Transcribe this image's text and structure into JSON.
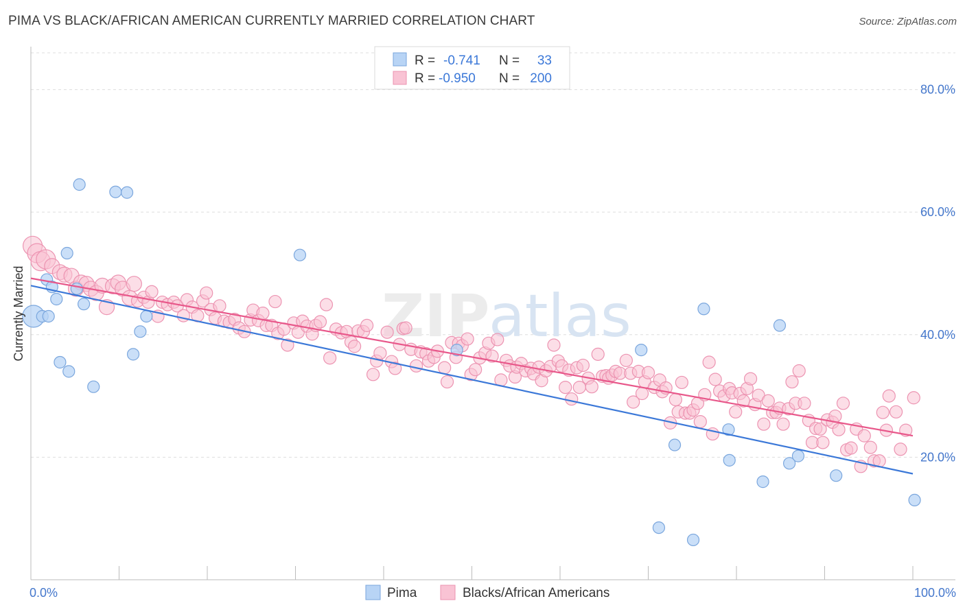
{
  "header": {
    "title": "PIMA VS BLACK/AFRICAN AMERICAN CURRENTLY MARRIED CORRELATION CHART",
    "source": "Source: ZipAtlas.com"
  },
  "legend": {
    "rows": [
      {
        "r_label": "R =",
        "r_value": "-0.741",
        "n_label": "N =",
        "n_value": "33"
      },
      {
        "r_label": "R =",
        "r_value": "-0.950",
        "n_label": "N =",
        "n_value": "200"
      }
    ],
    "bottom": [
      "Pima",
      "Blacks/African Americans"
    ]
  },
  "watermark": {
    "zip": "ZIP",
    "atlas": "atlas"
  },
  "colors": {
    "pima_fill": "#b8d4f5",
    "pima_stroke": "#7aa6dd",
    "pima_line": "#3b78d8",
    "black_fill": "#f9c3d4",
    "black_stroke": "#ec93b1",
    "black_line": "#e8578a",
    "tick_text": "#4477cc",
    "grid": "#dddddd"
  },
  "chart_data": {
    "type": "scatter",
    "ylabel": "Currently Married",
    "xlabel": "",
    "xlim": [
      0,
      100
    ],
    "ylim": [
      0,
      86
    ],
    "x_tick_labels": [
      "0.0%",
      "100.0%"
    ],
    "y_ticks": [
      20,
      40,
      60,
      80
    ],
    "y_tick_labels": [
      "20.0%",
      "40.0%",
      "60.0%",
      "80.0%"
    ],
    "grid": true,
    "series": [
      {
        "name": "Pima",
        "trend": {
          "x": [
            0,
            100
          ],
          "y": [
            48.0,
            17.3
          ]
        },
        "points": [
          [
            0.3,
            43.0
          ],
          [
            1.3,
            43.0
          ],
          [
            2.0,
            43.0
          ],
          [
            1.8,
            49.0
          ],
          [
            2.4,
            47.8
          ],
          [
            2.9,
            45.8
          ],
          [
            3.3,
            35.5
          ],
          [
            4.1,
            53.3
          ],
          [
            4.3,
            34.0
          ],
          [
            5.2,
            47.5
          ],
          [
            5.5,
            64.5
          ],
          [
            6.0,
            45.0
          ],
          [
            7.1,
            31.5
          ],
          [
            9.6,
            63.3
          ],
          [
            10.9,
            63.2
          ],
          [
            11.6,
            36.8
          ],
          [
            12.4,
            40.5
          ],
          [
            13.1,
            43.0
          ],
          [
            30.5,
            53.0
          ],
          [
            48.3,
            37.5
          ],
          [
            69.2,
            37.5
          ],
          [
            71.2,
            8.5
          ],
          [
            73.0,
            22.0
          ],
          [
            75.1,
            6.5
          ],
          [
            76.3,
            44.2
          ],
          [
            79.1,
            24.5
          ],
          [
            79.2,
            19.5
          ],
          [
            83.0,
            16.0
          ],
          [
            84.9,
            41.5
          ],
          [
            86.0,
            19.0
          ],
          [
            87.0,
            20.2
          ],
          [
            91.3,
            17.0
          ],
          [
            100.2,
            13.0
          ]
        ]
      },
      {
        "name": "Blacks/African Americans",
        "trend": {
          "x": [
            0,
            100
          ],
          "y": [
            49.2,
            23.5
          ]
        },
        "points": [
          [
            0.2,
            54.5
          ],
          [
            0.7,
            53.3
          ],
          [
            1.1,
            52.0
          ],
          [
            1.7,
            52.3
          ],
          [
            2.4,
            51.2
          ],
          [
            3.3,
            50.2
          ],
          [
            3.8,
            49.8
          ],
          [
            4.6,
            49.6
          ],
          [
            5.1,
            47.5
          ],
          [
            5.7,
            48.5
          ],
          [
            6.3,
            48.3
          ],
          [
            6.8,
            47.5
          ],
          [
            7.4,
            46.8
          ],
          [
            8.1,
            48.0
          ],
          [
            8.6,
            44.5
          ],
          [
            9.3,
            47.9
          ],
          [
            9.9,
            48.5
          ],
          [
            10.4,
            47.5
          ],
          [
            11.2,
            46.0
          ],
          [
            11.7,
            48.3
          ],
          [
            12.1,
            45.5
          ],
          [
            12.8,
            46.1
          ],
          [
            13.3,
            45.3
          ],
          [
            13.7,
            47.0
          ],
          [
            14.4,
            43.0
          ],
          [
            14.9,
            45.3
          ],
          [
            15.5,
            44.9
          ],
          [
            16.2,
            45.3
          ],
          [
            16.6,
            44.7
          ],
          [
            17.3,
            43.1
          ],
          [
            17.7,
            45.7
          ],
          [
            18.3,
            44.5
          ],
          [
            18.9,
            43.1
          ],
          [
            19.5,
            45.5
          ],
          [
            19.9,
            46.8
          ],
          [
            20.4,
            44.1
          ],
          [
            20.9,
            42.7
          ],
          [
            21.4,
            44.7
          ],
          [
            21.9,
            42.2
          ],
          [
            22.5,
            42.0
          ],
          [
            23.1,
            42.5
          ],
          [
            23.6,
            41.1
          ],
          [
            24.2,
            40.5
          ],
          [
            24.9,
            42.4
          ],
          [
            25.2,
            44.0
          ],
          [
            25.8,
            42.3
          ],
          [
            26.3,
            43.5
          ],
          [
            26.7,
            41.5
          ],
          [
            27.3,
            41.5
          ],
          [
            27.7,
            45.4
          ],
          [
            28.0,
            40.2
          ],
          [
            28.7,
            40.9
          ],
          [
            29.1,
            38.3
          ],
          [
            29.8,
            41.9
          ],
          [
            30.3,
            40.4
          ],
          [
            30.8,
            42.2
          ],
          [
            31.3,
            41.4
          ],
          [
            31.9,
            40.1
          ],
          [
            32.3,
            41.5
          ],
          [
            32.8,
            42.1
          ],
          [
            33.5,
            44.9
          ],
          [
            33.9,
            36.2
          ],
          [
            34.6,
            40.9
          ],
          [
            35.2,
            40.3
          ],
          [
            35.8,
            40.5
          ],
          [
            36.3,
            38.8
          ],
          [
            36.7,
            38.1
          ],
          [
            37.1,
            40.6
          ],
          [
            37.7,
            40.5
          ],
          [
            38.1,
            41.5
          ],
          [
            38.8,
            33.5
          ],
          [
            39.2,
            35.7
          ],
          [
            39.6,
            37.0
          ],
          [
            40.4,
            40.4
          ],
          [
            40.9,
            35.6
          ],
          [
            41.3,
            34.5
          ],
          [
            41.8,
            38.4
          ],
          [
            42.2,
            41.0
          ],
          [
            42.5,
            41.1
          ],
          [
            43.1,
            37.6
          ],
          [
            43.7,
            34.9
          ],
          [
            44.2,
            37.2
          ],
          [
            44.8,
            36.9
          ],
          [
            45.1,
            35.7
          ],
          [
            45.7,
            36.3
          ],
          [
            46.1,
            37.3
          ],
          [
            46.9,
            34.6
          ],
          [
            47.2,
            32.3
          ],
          [
            47.7,
            38.7
          ],
          [
            48.2,
            36.3
          ],
          [
            48.5,
            38.6
          ],
          [
            48.9,
            38.2
          ],
          [
            49.5,
            39.3
          ],
          [
            49.9,
            33.5
          ],
          [
            50.4,
            34.3
          ],
          [
            50.9,
            36.2
          ],
          [
            51.5,
            37.0
          ],
          [
            51.9,
            38.6
          ],
          [
            52.3,
            36.5
          ],
          [
            52.9,
            39.2
          ],
          [
            53.3,
            32.6
          ],
          [
            53.9,
            35.8
          ],
          [
            54.3,
            34.9
          ],
          [
            54.9,
            33.1
          ],
          [
            55.1,
            34.7
          ],
          [
            55.6,
            35.3
          ],
          [
            56.1,
            34.1
          ],
          [
            56.7,
            34.5
          ],
          [
            57.0,
            33.6
          ],
          [
            57.6,
            34.7
          ],
          [
            57.9,
            32.5
          ],
          [
            58.4,
            34.1
          ],
          [
            58.9,
            34.8
          ],
          [
            59.3,
            38.3
          ],
          [
            59.8,
            35.7
          ],
          [
            60.2,
            34.9
          ],
          [
            60.6,
            31.4
          ],
          [
            61.0,
            34.2
          ],
          [
            61.3,
            29.5
          ],
          [
            61.9,
            34.6
          ],
          [
            62.2,
            31.4
          ],
          [
            62.6,
            35.0
          ],
          [
            63.2,
            32.9
          ],
          [
            63.6,
            31.5
          ],
          [
            64.3,
            36.8
          ],
          [
            64.8,
            33.2
          ],
          [
            65.2,
            33.3
          ],
          [
            65.5,
            32.9
          ],
          [
            65.9,
            33.4
          ],
          [
            66.3,
            34.0
          ],
          [
            66.8,
            33.7
          ],
          [
            67.5,
            35.8
          ],
          [
            68.0,
            33.7
          ],
          [
            68.3,
            29.0
          ],
          [
            68.9,
            34.0
          ],
          [
            69.3,
            30.4
          ],
          [
            69.6,
            32.3
          ],
          [
            70.0,
            33.8
          ],
          [
            70.7,
            31.4
          ],
          [
            71.3,
            32.6
          ],
          [
            71.6,
            30.7
          ],
          [
            72.0,
            31.3
          ],
          [
            72.5,
            25.6
          ],
          [
            73.1,
            29.4
          ],
          [
            73.4,
            27.4
          ],
          [
            73.8,
            32.2
          ],
          [
            74.2,
            27.2
          ],
          [
            74.7,
            27.2
          ],
          [
            75.1,
            27.7
          ],
          [
            75.6,
            28.8
          ],
          [
            75.9,
            25.8
          ],
          [
            76.4,
            30.2
          ],
          [
            76.9,
            35.5
          ],
          [
            77.3,
            23.8
          ],
          [
            77.6,
            32.7
          ],
          [
            78.1,
            30.8
          ],
          [
            78.6,
            30.0
          ],
          [
            79.2,
            31.2
          ],
          [
            79.5,
            30.5
          ],
          [
            79.9,
            27.4
          ],
          [
            80.4,
            30.4
          ],
          [
            80.8,
            29.2
          ],
          [
            81.2,
            31.2
          ],
          [
            81.6,
            32.8
          ],
          [
            82.1,
            28.6
          ],
          [
            82.5,
            30.1
          ],
          [
            83.1,
            25.4
          ],
          [
            83.6,
            29.2
          ],
          [
            84.1,
            27.3
          ],
          [
            84.5,
            27.3
          ],
          [
            84.9,
            28.0
          ],
          [
            85.3,
            25.4
          ],
          [
            85.9,
            27.9
          ],
          [
            86.3,
            32.3
          ],
          [
            86.7,
            28.8
          ],
          [
            87.1,
            34.1
          ],
          [
            87.7,
            28.8
          ],
          [
            88.2,
            26.0
          ],
          [
            88.6,
            22.4
          ],
          [
            89.0,
            24.7
          ],
          [
            89.5,
            24.6
          ],
          [
            89.8,
            22.4
          ],
          [
            90.3,
            26.1
          ],
          [
            90.9,
            25.7
          ],
          [
            91.2,
            26.7
          ],
          [
            91.6,
            24.5
          ],
          [
            92.1,
            28.8
          ],
          [
            92.5,
            21.2
          ],
          [
            93.0,
            21.5
          ],
          [
            93.6,
            24.6
          ],
          [
            94.1,
            18.5
          ],
          [
            94.5,
            23.5
          ],
          [
            95.2,
            21.6
          ],
          [
            95.6,
            19.4
          ],
          [
            96.2,
            19.4
          ],
          [
            96.6,
            27.3
          ],
          [
            97.0,
            24.4
          ],
          [
            97.3,
            30.0
          ],
          [
            98.1,
            27.4
          ],
          [
            98.6,
            21.3
          ],
          [
            99.2,
            24.4
          ],
          [
            100.1,
            29.7
          ]
        ]
      }
    ]
  }
}
